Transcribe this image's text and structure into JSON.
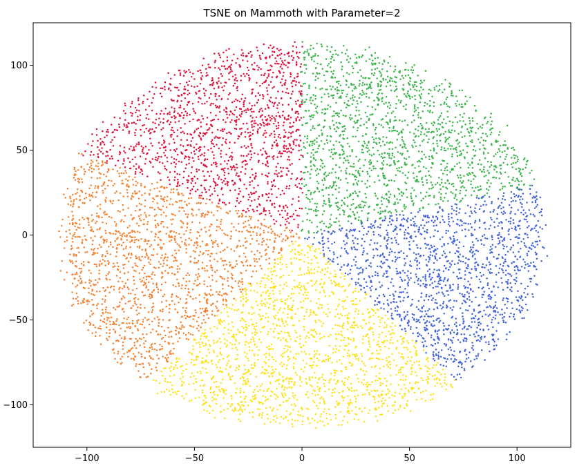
{
  "chart_data": {
    "type": "scatter",
    "title": "TSNE on Mammoth with Parameter=2",
    "xlabel": "",
    "ylabel": "",
    "xlim": [
      -125,
      125
    ],
    "ylim": [
      -125,
      125
    ],
    "x_ticks": [
      -100,
      -50,
      0,
      50,
      100
    ],
    "y_ticks": [
      -100,
      -50,
      0,
      50,
      100
    ],
    "x_tick_labels": [
      "−100",
      "−50",
      "0",
      "50",
      "100"
    ],
    "y_tick_labels": [
      "−100",
      "−50",
      "0",
      "50",
      "100"
    ],
    "grid": false,
    "legend": "none",
    "cloud": {
      "shape": "ellipse",
      "center": [
        0,
        0
      ],
      "semi_axis_x": 112,
      "semi_axis_y": 112
    },
    "clusters": [
      {
        "color": "#dc143c",
        "angle_range_deg": [
          90,
          155
        ],
        "approx_points": 1450
      },
      {
        "color": "#3cb44b",
        "angle_range_deg": [
          15,
          90
        ],
        "approx_points": 1650
      },
      {
        "color": "#4363d8",
        "angle_range_deg": [
          -50,
          15
        ],
        "approx_points": 1550
      },
      {
        "color": "#ffe119",
        "angle_range_deg": [
          -130,
          -50
        ],
        "approx_points": 1750
      },
      {
        "color": "#f58231",
        "angle_range_deg": [
          155,
          230
        ],
        "approx_points": 1650
      }
    ]
  }
}
